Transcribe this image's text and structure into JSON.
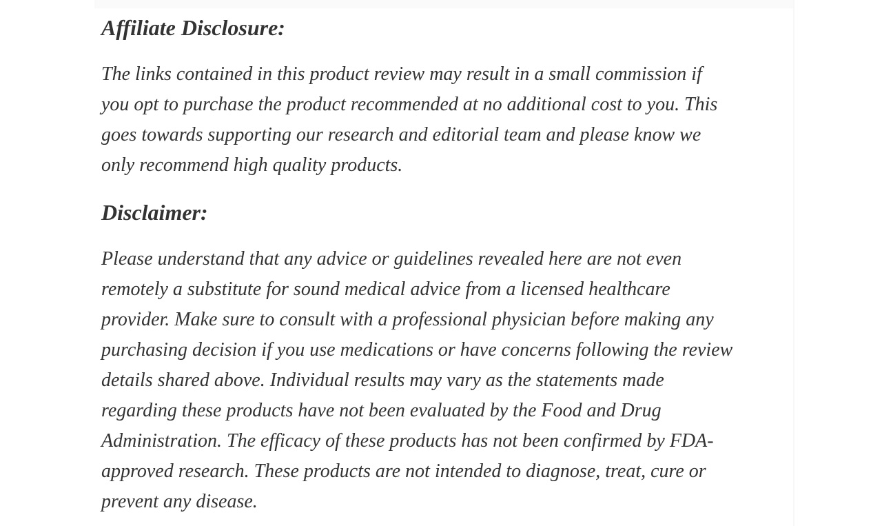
{
  "page": {
    "colors": {
      "background": "#ffffff",
      "content_background": "#ffffff",
      "top_strip": "#fafafa",
      "right_divider": "#f7f7f7",
      "text": "#333333"
    }
  },
  "article": {
    "sections": [
      {
        "heading": "Affiliate Disclosure:",
        "lines": [
          "The links contained in this product review may result in a small commission if",
          "you opt to purchase the product recommended at no additional cost to you. This",
          "goes towards supporting our research and editorial team and please know we",
          "only recommend high quality products."
        ]
      },
      {
        "heading": "Disclaimer:",
        "lines": [
          "Please understand that any advice or guidelines revealed here are not even",
          "remotely a substitute for sound medical advice from a licensed healthcare",
          "provider. Make sure to consult with a professional physician before making any",
          "purchasing decision if you use medications or have concerns following the review",
          "details shared above. Individual results may vary as the statements made",
          "regarding these products have not been evaluated by the Food and Drug",
          "Administration. The efficacy of these products has not been confirmed by FDA-",
          "approved research. These products are not intended to diagnose, treat, cure or",
          "prevent any disease."
        ]
      }
    ]
  }
}
